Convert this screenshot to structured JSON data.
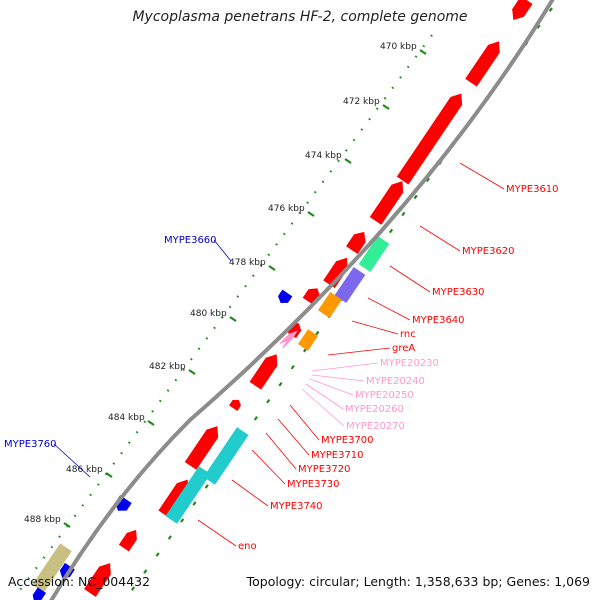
{
  "title": "Mycoplasma penetrans HF-2, complete genome",
  "footer": {
    "accession": "Accession: NC_004432",
    "topology": "Topology: circular; Length: 1,358,633 bp; Genes: 1,069"
  },
  "ticks": [
    {
      "label": "470 kbp"
    },
    {
      "label": "472 kbp"
    },
    {
      "label": "474 kbp"
    },
    {
      "label": "476 kbp"
    },
    {
      "label": "478 kbp"
    },
    {
      "label": "480 kbp"
    },
    {
      "label": "482 kbp"
    },
    {
      "label": "484 kbp"
    },
    {
      "label": "486 kbp"
    },
    {
      "label": "488 kbp"
    }
  ],
  "genes": [
    {
      "name": "MYPE3610",
      "color": "#ff0000"
    },
    {
      "name": "MYPE3620",
      "color": "#ff0000"
    },
    {
      "name": "MYPE3630",
      "color": "#ff0000"
    },
    {
      "name": "MYPE3640",
      "color": "#ff0000"
    },
    {
      "name": "rnc",
      "color": "#ff0000"
    },
    {
      "name": "greA",
      "color": "#ff0000"
    },
    {
      "name": "MYPE20230",
      "color": "#ff99cc"
    },
    {
      "name": "MYPE20240",
      "color": "#ff99cc"
    },
    {
      "name": "MYPE20250",
      "color": "#ff99cc"
    },
    {
      "name": "MYPE20260",
      "color": "#ff99cc"
    },
    {
      "name": "MYPE20270",
      "color": "#ff99cc"
    },
    {
      "name": "MYPE3700",
      "color": "#ff0000"
    },
    {
      "name": "MYPE3710",
      "color": "#ff0000"
    },
    {
      "name": "MYPE3720",
      "color": "#ff0000"
    },
    {
      "name": "MYPE3730",
      "color": "#ff0000"
    },
    {
      "name": "MYPE3740",
      "color": "#ff0000"
    },
    {
      "name": "eno",
      "color": "#ff0000"
    },
    {
      "name": "MYPE3660",
      "color": "#0000cc"
    },
    {
      "name": "MYPE3760",
      "color": "#0000cc"
    }
  ],
  "colors": {
    "backbone": "#8c8c8c",
    "gc_skew": "#1f8a1f",
    "cds_forward": "#ff0000",
    "cds_reverse": "#0000ee",
    "trna": "#ff99cc",
    "feature_orange": "#ff9900",
    "feature_purple": "#7b68ee",
    "feature_green": "#33ee99",
    "feature_teal": "#22cccc",
    "feature_olive": "#c8c080"
  }
}
